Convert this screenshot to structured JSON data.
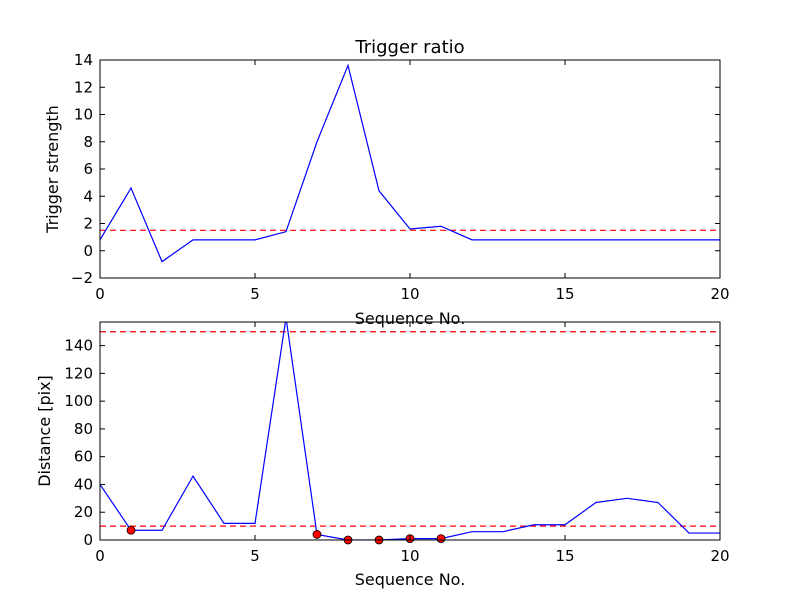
{
  "chart_data": [
    {
      "type": "line",
      "title": "Trigger ratio",
      "xlabel": "Sequence No.",
      "ylabel": "Trigger strength",
      "xlim": [
        0,
        20
      ],
      "ylim": [
        -2,
        14
      ],
      "xticks": [
        0,
        5,
        10,
        15,
        20
      ],
      "yticks": [
        -2,
        0,
        2,
        4,
        6,
        8,
        10,
        12,
        14
      ],
      "grid": false,
      "series": [
        {
          "x": [
            0,
            1,
            2,
            3,
            4,
            5,
            6,
            7,
            8,
            9,
            10,
            11,
            12,
            13,
            14,
            15,
            16,
            17,
            18,
            19,
            20
          ],
          "y": [
            0.8,
            4.6,
            -0.8,
            0.8,
            0.8,
            0.8,
            1.4,
            8.0,
            13.6,
            4.4,
            1.6,
            1.8,
            0.8,
            0.8,
            0.8,
            0.8,
            0.8,
            0.8,
            0.8,
            0.8,
            0.8
          ],
          "color": "#0000ff"
        }
      ],
      "hlines": [
        {
          "y": 1.5,
          "color": "#ff0000",
          "style": "dashed"
        }
      ]
    },
    {
      "type": "line",
      "title": "",
      "xlabel": "Sequence No.",
      "ylabel": "Distance [pix]",
      "xlim": [
        0,
        20
      ],
      "ylim": [
        0,
        157
      ],
      "xticks": [
        0,
        5,
        10,
        15,
        20
      ],
      "yticks": [
        0,
        20,
        40,
        60,
        80,
        100,
        120,
        140
      ],
      "grid": false,
      "series": [
        {
          "x": [
            0,
            1,
            2,
            3,
            4,
            5,
            6,
            7,
            8,
            9,
            10,
            11,
            12,
            13,
            14,
            15,
            16,
            17,
            18,
            19,
            20
          ],
          "y": [
            40,
            7,
            7,
            46,
            12,
            12,
            160,
            4,
            0,
            0,
            1,
            1,
            6,
            6,
            11,
            11,
            27,
            30,
            27,
            5,
            5
          ],
          "color": "#0000ff"
        }
      ],
      "markers": {
        "x": [
          1,
          7,
          8,
          9,
          10,
          11
        ],
        "y": [
          7,
          4,
          0,
          0,
          1,
          1
        ],
        "color": "#ff0000"
      },
      "hlines": [
        {
          "y": 150,
          "color": "#ff0000",
          "style": "dashed"
        },
        {
          "y": 10,
          "color": "#ff0000",
          "style": "dashed"
        }
      ]
    }
  ]
}
